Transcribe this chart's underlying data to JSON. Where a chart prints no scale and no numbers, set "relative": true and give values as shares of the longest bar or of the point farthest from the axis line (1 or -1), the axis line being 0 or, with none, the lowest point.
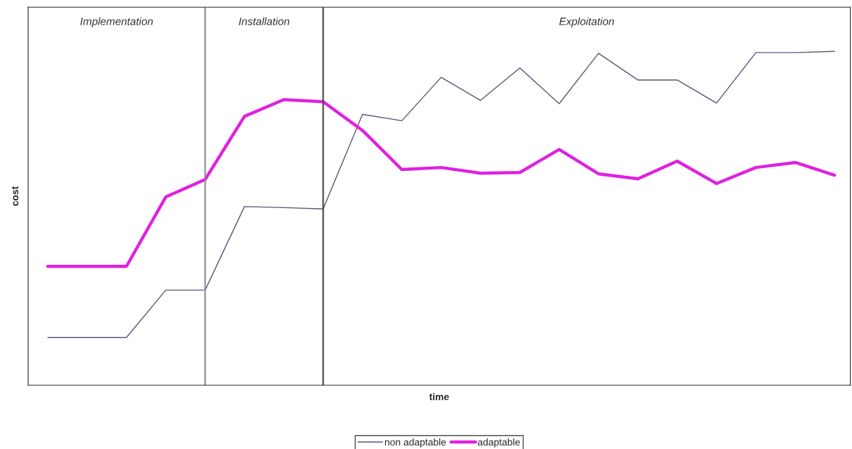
{
  "chart_data": {
    "type": "line",
    "relative": true,
    "xlabel": "time",
    "ylabel": "cost",
    "categories": [
      null,
      null,
      null,
      null,
      null,
      null,
      null,
      null,
      null,
      null,
      null,
      null,
      null,
      null,
      null,
      null,
      null,
      null,
      null,
      null,
      null
    ],
    "series": [
      {
        "name": "non adaptable",
        "color": "#55557a",
        "values": [
          0.143,
          0.143,
          0.143,
          0.285,
          0.285,
          0.535,
          0.532,
          0.528,
          0.811,
          0.792,
          0.922,
          0.853,
          0.95,
          0.843,
          0.994,
          0.914,
          0.914,
          0.845,
          0.996,
          0.996,
          1
        ]
      },
      {
        "name": "adaptable",
        "color": "#e020e0",
        "values": [
          0.356,
          0.356,
          0.356,
          0.564,
          0.616,
          0.805,
          0.855,
          0.849,
          0.763,
          0.646,
          0.652,
          0.635,
          0.637,
          0.706,
          0.633,
          0.618,
          0.671,
          0.604,
          0.652,
          0.667,
          0.629
        ]
      }
    ],
    "annotations": [
      "Implementation",
      "Installation",
      "Exploitation"
    ],
    "legend": "bottom",
    "marker": "none",
    "line_style": "solid"
  }
}
